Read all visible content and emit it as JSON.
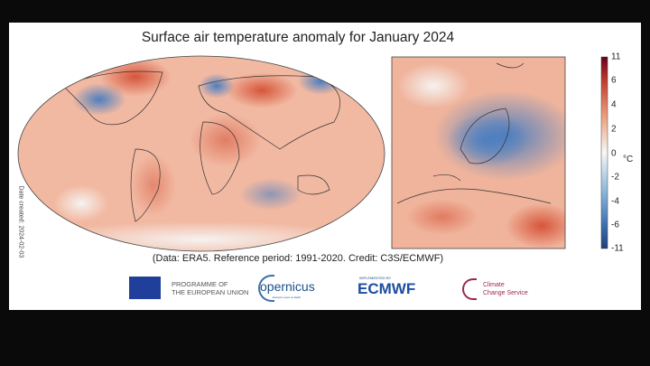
{
  "figure": {
    "title": "Surface air temperature anomaly for January 2024",
    "side_note": "Date created: 2024-02-03",
    "caption": "(Data: ERA5.  Reference period: 1991-2020.  Credit: C3S/ECMWF)"
  },
  "colorbar": {
    "unit": "°C",
    "ticks": [
      "11",
      "6",
      "4",
      "2",
      "0",
      "-2",
      "-4",
      "-6",
      "-11"
    ],
    "colors": {
      "max": "#67001f",
      "warm": "#e0704a",
      "neutral": "#f7f7f7",
      "cool": "#6a9ccc",
      "min": "#1f3f7a"
    }
  },
  "logos": {
    "eu_line1": "PROGRAMME OF",
    "eu_line2": "THE EUROPEAN UNION",
    "copernicus": "opernicus",
    "copernicus_tagline": "Europe's eyes on Earth",
    "ecmwf_supertext": "IMPLEMENTED BY",
    "ecmwf": "ECMWF",
    "c3s_line1": "Climate",
    "c3s_line2": "Change Service"
  }
}
